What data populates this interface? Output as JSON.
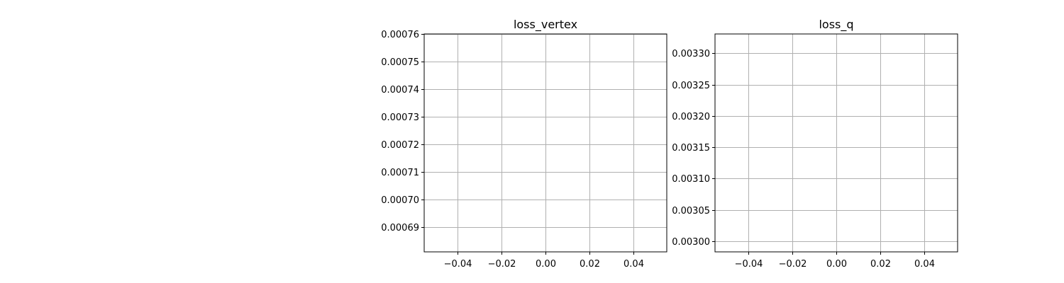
{
  "chart_data": [
    {
      "type": "line",
      "title": "loss_vertex",
      "xlabel": "",
      "ylabel": "",
      "xlim": [
        -0.055,
        0.055
      ],
      "ylim": [
        0.000681,
        0.00076
      ],
      "xticks": [
        -0.04,
        -0.02,
        0.0,
        0.02,
        0.04
      ],
      "xtick_labels": [
        "−0.04",
        "−0.02",
        "0.00",
        "0.02",
        "0.04"
      ],
      "yticks": [
        0.00069,
        0.0007,
        0.00071,
        0.00072,
        0.00073,
        0.00074,
        0.00075,
        0.00076
      ],
      "ytick_labels": [
        "0.00069",
        "0.00070",
        "0.00071",
        "0.00072",
        "0.00073",
        "0.00074",
        "0.00075",
        "0.00076"
      ],
      "grid": true,
      "series": []
    },
    {
      "type": "line",
      "title": "loss_q",
      "xlabel": "",
      "ylabel": "",
      "xlim": [
        -0.055,
        0.055
      ],
      "ylim": [
        0.002983,
        0.003331
      ],
      "xticks": [
        -0.04,
        -0.02,
        0.0,
        0.02,
        0.04
      ],
      "xtick_labels": [
        "−0.04",
        "−0.02",
        "0.00",
        "0.02",
        "0.04"
      ],
      "yticks": [
        0.003,
        0.00305,
        0.0031,
        0.00315,
        0.0032,
        0.00325,
        0.0033
      ],
      "ytick_labels": [
        "0.00300",
        "0.00305",
        "0.00310",
        "0.00315",
        "0.00320",
        "0.00325",
        "0.00330"
      ],
      "grid": true,
      "series": []
    }
  ],
  "colors": {
    "grid": "#b0b0b0",
    "axes": "#000000",
    "background": "#ffffff"
  }
}
